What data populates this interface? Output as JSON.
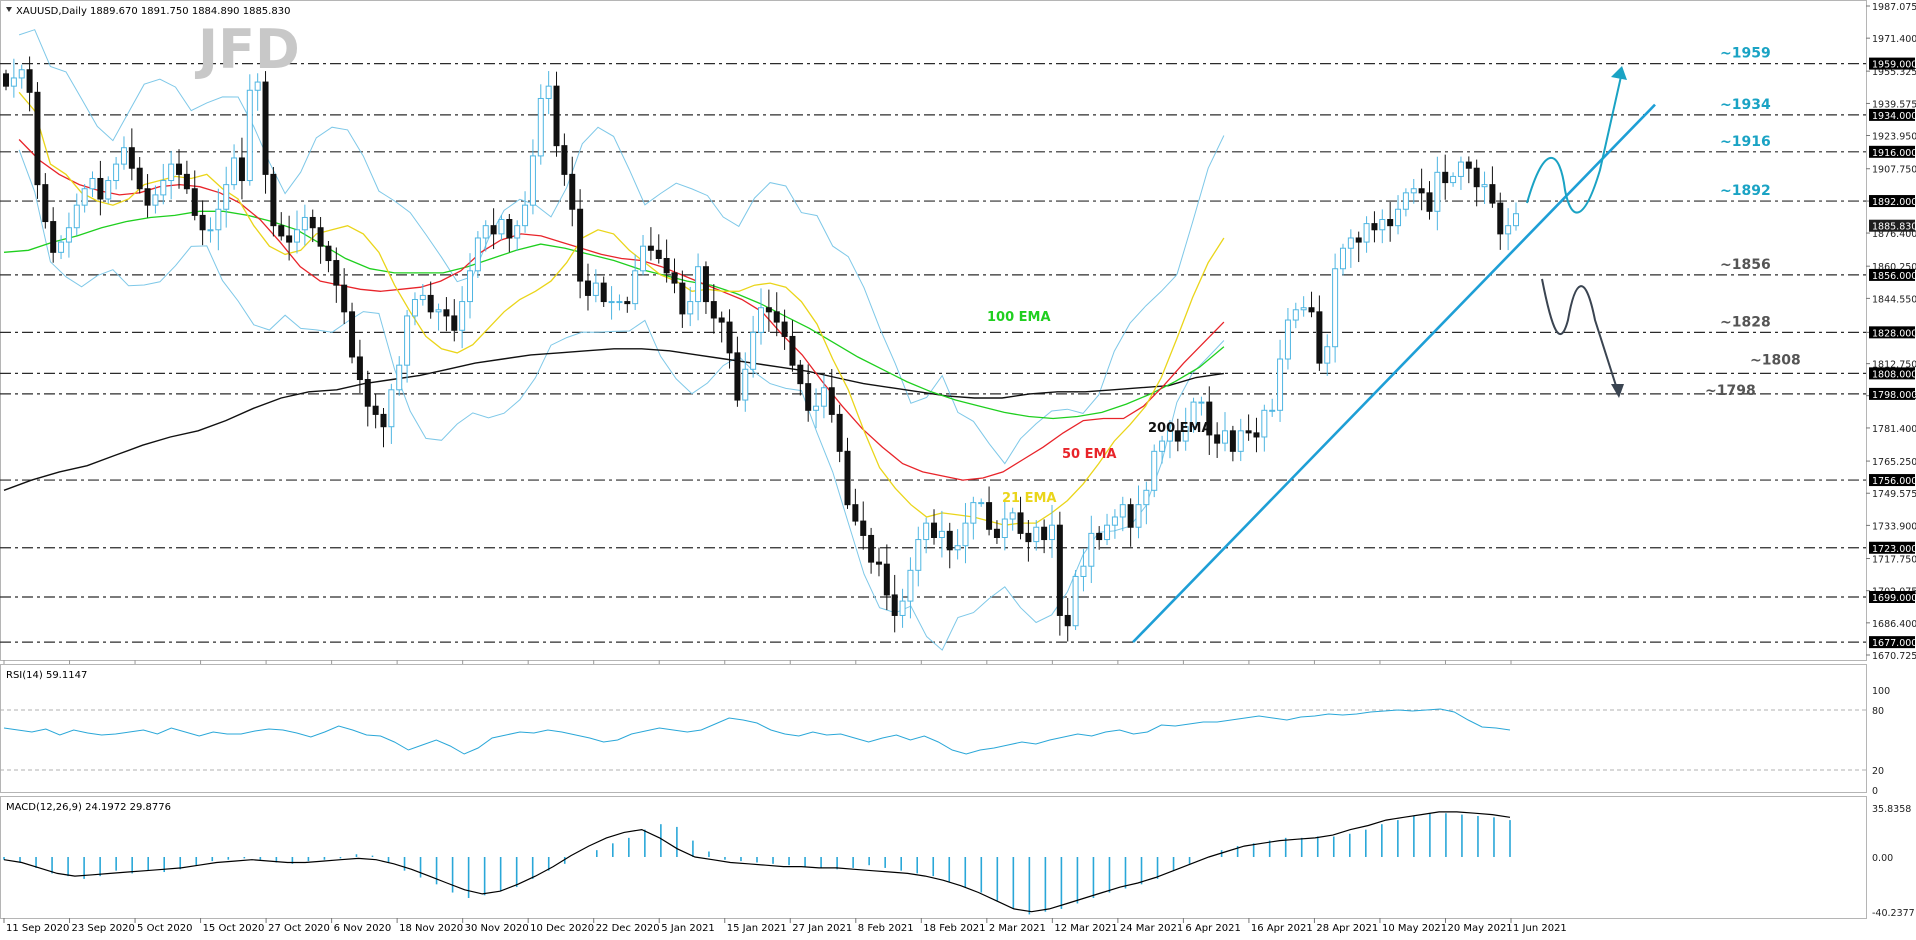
{
  "watermark": "JFD",
  "main_header": "XAUUSD,Daily  1889.670 1891.750 1884.890 1885.830",
  "rsi_header": "RSI(14) 59.1147",
  "macd_header": "MACD(12,26,9) 24.1972 29.8776",
  "dates": [
    "11 Sep 2020",
    "23 Sep 2020",
    "5 Oct 2020",
    "15 Oct 2020",
    "27 Oct 2020",
    "6 Nov 2020",
    "18 Nov 2020",
    "30 Nov 2020",
    "10 Dec 2020",
    "22 Dec 2020",
    "5 Jan 2021",
    "15 Jan 2021",
    "27 Jan 2021",
    "8 Feb 2021",
    "18 Feb 2021",
    "2 Mar 2021",
    "12 Mar 2021",
    "24 Mar 2021",
    "6 Apr 2021",
    "16 Apr 2021",
    "28 Apr 2021",
    "10 May 2021",
    "20 May 2021",
    "1 Jun 2021"
  ],
  "chart_data": {
    "type": "candlestick",
    "symbol": "XAUUSD",
    "timeframe": "Daily",
    "ohlc_last": {
      "open": 1889.67,
      "high": 1891.75,
      "low": 1884.89,
      "close": 1885.83
    },
    "y_ticks": [
      "1987.075",
      "1971.400",
      "1955.325",
      "1939.575",
      "1923.950",
      "1907.750",
      "1892.000",
      "1876.400",
      "1860.250",
      "1844.550",
      "1828.000",
      "1812.750",
      "1797.125",
      "1781.400",
      "1765.250",
      "1749.575",
      "1733.900",
      "1717.750",
      "1702.075",
      "1686.400",
      "1670.725"
    ],
    "ylim": [
      1670.725,
      1987.075
    ],
    "current_price_label": "1885.830",
    "levels": [
      {
        "value": 1959,
        "tag": "1959.000",
        "annotation": "~1959",
        "color": "#1aa3c4"
      },
      {
        "value": 1934,
        "tag": "1934.000",
        "annotation": "~1934",
        "color": "#1aa3c4"
      },
      {
        "value": 1916,
        "tag": "1916.000",
        "annotation": "~1916",
        "color": "#1aa3c4"
      },
      {
        "value": 1892,
        "tag": "1892.000",
        "annotation": "~1892",
        "color": "#1aa3c4"
      },
      {
        "value": 1856,
        "tag": "1856.000",
        "annotation": "~1856",
        "color": "#555555"
      },
      {
        "value": 1828,
        "tag": "1828.000",
        "annotation": "~1828",
        "color": "#555555"
      },
      {
        "value": 1808,
        "tag": "1808.000",
        "annotation": "~1808",
        "color": "#555555"
      },
      {
        "value": 1798,
        "tag": "1798.000",
        "annotation": "~1798",
        "color": "#555555"
      },
      {
        "value": 1756,
        "tag": "1756.000",
        "annotation": "",
        "color": "#555555"
      },
      {
        "value": 1723,
        "tag": "1723.000",
        "annotation": "",
        "color": "#555555"
      },
      {
        "value": 1699,
        "tag": "1699.000",
        "annotation": "",
        "color": "#555555"
      },
      {
        "value": 1677,
        "tag": "1677.000",
        "annotation": "",
        "color": "#555555"
      }
    ],
    "closes": [
      1948,
      1952,
      1956,
      1945,
      1900,
      1882,
      1867,
      1872,
      1879,
      1890,
      1898,
      1903,
      1893,
      1902,
      1910,
      1918,
      1908,
      1898,
      1890,
      1895,
      1902,
      1910,
      1905,
      1898,
      1885,
      1878,
      1878,
      1888,
      1900,
      1913,
      1902,
      1946,
      1950,
      1905,
      1880,
      1875,
      1872,
      1878,
      1884,
      1879,
      1870,
      1863,
      1851,
      1838,
      1816,
      1805,
      1792,
      1788,
      1782,
      1800,
      1812,
      1836,
      1844,
      1846,
      1838,
      1839,
      1836,
      1829,
      1843,
      1858,
      1874,
      1880,
      1876,
      1883,
      1874,
      1880,
      1890,
      1914,
      1942,
      1948,
      1919,
      1905,
      1888,
      1853,
      1846,
      1852,
      1843,
      1843,
      1843,
      1842,
      1858,
      1870,
      1868,
      1864,
      1857,
      1852,
      1837,
      1843,
      1860,
      1843,
      1835,
      1833,
      1818,
      1795,
      1810,
      1828,
      1840,
      1838,
      1833,
      1826,
      1812,
      1803,
      1790,
      1792,
      1801,
      1788,
      1770,
      1744,
      1736,
      1729,
      1716,
      1715,
      1700,
      1690,
      1697,
      1712,
      1727,
      1735,
      1728,
      1731,
      1722,
      1724,
      1735,
      1745,
      1745,
      1732,
      1728,
      1737,
      1740,
      1730,
      1726,
      1733,
      1727,
      1734,
      1690,
      1685,
      1709,
      1714,
      1730,
      1727,
      1734,
      1738,
      1744,
      1733,
      1744,
      1751,
      1770,
      1775,
      1780,
      1775,
      1782,
      1794,
      1794,
      1778,
      1774,
      1780,
      1770,
      1780,
      1779,
      1777,
      1790,
      1790,
      1815,
      1834,
      1839,
      1840,
      1838,
      1813,
      1821,
      1859,
      1869,
      1874,
      1872,
      1881,
      1878,
      1883,
      1880,
      1888,
      1896,
      1898,
      1896,
      1887,
      1906,
      1901,
      1904,
      1911,
      1908,
      1899,
      1900,
      1891,
      1876,
      1880,
      1885.83
    ],
    "ema21": [
      1945,
      1936,
      1910,
      1905,
      1896,
      1892,
      1890,
      1893,
      1900,
      1902,
      1904,
      1903,
      1905,
      1898,
      1893,
      1880,
      1870,
      1866,
      1868,
      1876,
      1878,
      1880,
      1876,
      1867,
      1851,
      1838,
      1826,
      1820,
      1818,
      1822,
      1830,
      1838,
      1844,
      1848,
      1853,
      1862,
      1874,
      1878,
      1876,
      1868,
      1862,
      1856,
      1853,
      1848,
      1849,
      1848,
      1848,
      1851,
      1852,
      1850,
      1843,
      1832,
      1815,
      1800,
      1780,
      1762,
      1752,
      1744,
      1738,
      1740,
      1739,
      1738,
      1736,
      1734,
      1735,
      1735,
      1740,
      1746,
      1754,
      1764,
      1775,
      1783,
      1792,
      1806,
      1825,
      1845,
      1862,
      1874
    ],
    "ema50": [
      1922,
      1912,
      1905,
      1900,
      1897,
      1895,
      1896,
      1899,
      1900,
      1899,
      1896,
      1891,
      1883,
      1872,
      1860,
      1853,
      1851,
      1849,
      1848,
      1849,
      1850,
      1853,
      1858,
      1867,
      1873,
      1876,
      1875,
      1872,
      1869,
      1866,
      1864,
      1863,
      1860,
      1856,
      1852,
      1848,
      1844,
      1838,
      1827,
      1817,
      1804,
      1792,
      1781,
      1772,
      1764,
      1760,
      1758,
      1756,
      1757,
      1760,
      1766,
      1772,
      1779,
      1785,
      1786,
      1786,
      1792,
      1802,
      1813,
      1823,
      1833
    ],
    "ema100": [
      1867,
      1868,
      1872,
      1875,
      1879,
      1882,
      1884,
      1885,
      1887,
      1887,
      1885,
      1882,
      1878,
      1871,
      1864,
      1859,
      1857,
      1857,
      1857,
      1860,
      1864,
      1868,
      1871,
      1869,
      1866,
      1863,
      1859,
      1856,
      1853,
      1851,
      1847,
      1842,
      1836,
      1830,
      1823,
      1816,
      1810,
      1804,
      1799,
      1795,
      1792,
      1789,
      1787,
      1786,
      1787,
      1789,
      1793,
      1798,
      1804,
      1811,
      1821
    ],
    "ema200": [
      1751,
      1756,
      1760,
      1763,
      1768,
      1773,
      1777,
      1780,
      1785,
      1791,
      1796,
      1799,
      1800,
      1803,
      1805,
      1807,
      1810,
      1813,
      1815,
      1817,
      1818,
      1819,
      1820,
      1820,
      1819,
      1817,
      1815,
      1813,
      1811,
      1809,
      1806,
      1803,
      1801,
      1799,
      1797,
      1796,
      1796,
      1798,
      1799,
      1799,
      1800,
      1801,
      1802,
      1806,
      1808
    ],
    "rsi": {
      "ylim": [
        0,
        100
      ],
      "levels": [
        20,
        80
      ],
      "tick_labels": [
        "100",
        "80",
        "20",
        "0"
      ],
      "values": [
        62,
        60,
        58,
        61,
        55,
        60,
        57,
        55,
        56,
        58,
        60,
        56,
        62,
        58,
        54,
        58,
        56,
        56,
        59,
        61,
        60,
        57,
        53,
        58,
        64,
        60,
        55,
        54,
        48,
        40,
        45,
        50,
        44,
        36,
        42,
        52,
        55,
        58,
        57,
        60,
        58,
        55,
        52,
        48,
        50,
        56,
        59,
        62,
        60,
        58,
        60,
        66,
        72,
        70,
        67,
        60,
        56,
        54,
        58,
        55,
        56,
        52,
        48,
        52,
        55,
        50,
        54,
        48,
        40,
        36,
        40,
        42,
        45,
        48,
        46,
        50,
        53,
        56,
        54,
        58,
        60,
        56,
        58,
        65,
        64,
        66,
        68,
        68,
        70,
        72,
        74,
        72,
        70,
        73,
        74,
        76,
        75,
        76,
        78,
        79,
        80,
        79,
        80,
        81,
        78,
        70,
        63,
        62,
        60
      ]
    },
    "macd": {
      "ylim": [
        -40.2377,
        35.8358
      ],
      "tick_labels": [
        "35.8358",
        "0.00",
        "-40.2377"
      ],
      "histogram": [
        -2,
        -4,
        -8,
        -12,
        -14,
        -16,
        -14,
        -10,
        -12,
        -10,
        -11,
        -9,
        -6,
        -3,
        -2,
        -1,
        -2,
        -4,
        -5,
        -3,
        -2,
        -1,
        2,
        1,
        -4,
        -10,
        -15,
        -20,
        -26,
        -30,
        -28,
        -25,
        -22,
        -16,
        -10,
        -5,
        0,
        5,
        10,
        14,
        20,
        24,
        22,
        12,
        4,
        -2,
        -3,
        -4,
        -5,
        -6,
        -7,
        -8,
        -9,
        -8,
        -6,
        -8,
        -10,
        -12,
        -14,
        -18,
        -22,
        -26,
        -32,
        -38,
        -42,
        -40,
        -38,
        -34,
        -30,
        -26,
        -23,
        -20,
        -16,
        -10,
        -5,
        0,
        5,
        8,
        10,
        12,
        14,
        14,
        15,
        15,
        17,
        20,
        24,
        27,
        30,
        32,
        32,
        31,
        30,
        29,
        27
      ],
      "signal": [
        -2,
        -4,
        -8,
        -12,
        -14,
        -13,
        -12,
        -11,
        -10,
        -9,
        -8,
        -6,
        -4,
        -3,
        -2,
        -3,
        -4,
        -4,
        -3,
        -2,
        -1,
        -2,
        -5,
        -9,
        -14,
        -19,
        -24,
        -27,
        -25,
        -20,
        -14,
        -7,
        1,
        8,
        14,
        18,
        20,
        14,
        6,
        0,
        -2,
        -4,
        -5,
        -6,
        -7,
        -7,
        -8,
        -8,
        -9,
        -10,
        -11,
        -12,
        -14,
        -17,
        -21,
        -26,
        -32,
        -38,
        -40,
        -38,
        -34,
        -30,
        -26,
        -22,
        -19,
        -15,
        -10,
        -5,
        0,
        4,
        8,
        10,
        12,
        13,
        14,
        16,
        20,
        23,
        27,
        29,
        31,
        33,
        33,
        32,
        31,
        29
      ]
    },
    "indicator_labels": [
      {
        "text": "100 EMA",
        "color": "#1fcf1f"
      },
      {
        "text": "200 EMA",
        "color": "#111111"
      },
      {
        "text": "50 EMA",
        "color": "#e8242a"
      },
      {
        "text": "21 EMA",
        "color": "#ead51a"
      }
    ],
    "colors": {
      "bullish_candle": "#4fb6e2",
      "bearish_candle": "#111111",
      "bollinger": "#7ec8e8",
      "trendline": "#1e9fd6",
      "projection_up": "#1aa3c4",
      "projection_down": "#3a4451",
      "rsi_line": "#2aa7d8",
      "macd_hist": "#2aa7d8",
      "macd_signal": "#000000"
    }
  }
}
